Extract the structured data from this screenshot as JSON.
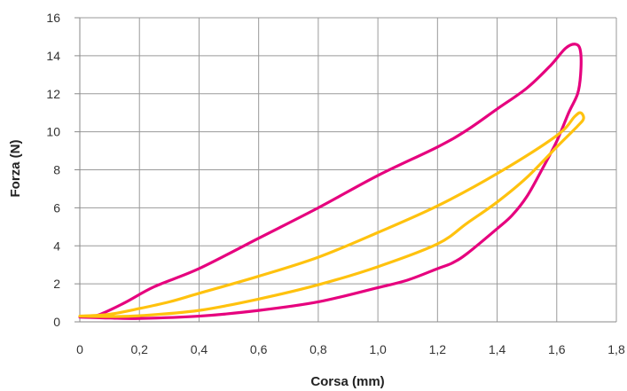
{
  "chart_data": {
    "type": "line",
    "title": "",
    "xlabel": "Corsa (mm)",
    "ylabel": "Forza (N)",
    "xlim": [
      0,
      1.8
    ],
    "ylim": [
      0,
      16
    ],
    "x_ticks": [
      0,
      0.2,
      0.4,
      0.6,
      0.8,
      1.0,
      1.2,
      1.4,
      1.6,
      1.8
    ],
    "x_tick_labels": [
      "0",
      "0,2",
      "0,4",
      "0,6",
      "0,8",
      "1,0",
      "1,2",
      "1,4",
      "1,6",
      "1,8"
    ],
    "y_ticks": [
      0,
      2,
      4,
      6,
      8,
      10,
      12,
      14,
      16
    ],
    "y_tick_labels": [
      "0",
      "2",
      "4",
      "6",
      "8",
      "10",
      "12",
      "14",
      "16"
    ],
    "grid": true,
    "legend": "none",
    "series": [
      {
        "color": "#e6007e",
        "points": [
          [
            0.0,
            0.25
          ],
          [
            0.06,
            0.35
          ],
          [
            0.15,
            1.0
          ],
          [
            0.25,
            1.85
          ],
          [
            0.4,
            2.8
          ],
          [
            0.6,
            4.4
          ],
          [
            0.8,
            6.0
          ],
          [
            1.0,
            7.7
          ],
          [
            1.2,
            9.2
          ],
          [
            1.3,
            10.1
          ],
          [
            1.4,
            11.2
          ],
          [
            1.5,
            12.3
          ],
          [
            1.58,
            13.5
          ],
          [
            1.63,
            14.4
          ],
          [
            1.665,
            14.6
          ],
          [
            1.68,
            14.2
          ],
          [
            1.68,
            13.0
          ],
          [
            1.67,
            12.0
          ],
          [
            1.64,
            11.0
          ],
          [
            1.6,
            9.5
          ],
          [
            1.55,
            8.0
          ],
          [
            1.5,
            6.6
          ],
          [
            1.45,
            5.6
          ],
          [
            1.4,
            4.9
          ],
          [
            1.3,
            3.6
          ],
          [
            1.25,
            3.1
          ],
          [
            1.2,
            2.8
          ],
          [
            1.1,
            2.2
          ],
          [
            1.0,
            1.8
          ],
          [
            0.8,
            1.05
          ],
          [
            0.6,
            0.6
          ],
          [
            0.4,
            0.3
          ],
          [
            0.2,
            0.18
          ],
          [
            0.1,
            0.2
          ],
          [
            0.0,
            0.25
          ]
        ]
      },
      {
        "color": "#ffc20e",
        "points": [
          [
            0.0,
            0.3
          ],
          [
            0.1,
            0.4
          ],
          [
            0.2,
            0.7
          ],
          [
            0.3,
            1.05
          ],
          [
            0.4,
            1.5
          ],
          [
            0.6,
            2.4
          ],
          [
            0.8,
            3.4
          ],
          [
            1.0,
            4.7
          ],
          [
            1.2,
            6.1
          ],
          [
            1.4,
            7.8
          ],
          [
            1.6,
            9.8
          ],
          [
            1.66,
            10.8
          ],
          [
            1.68,
            11.0
          ],
          [
            1.69,
            10.7
          ],
          [
            1.67,
            10.3
          ],
          [
            1.6,
            9.2
          ],
          [
            1.5,
            7.6
          ],
          [
            1.4,
            6.3
          ],
          [
            1.3,
            5.2
          ],
          [
            1.2,
            4.1
          ],
          [
            1.0,
            2.9
          ],
          [
            0.8,
            1.95
          ],
          [
            0.6,
            1.2
          ],
          [
            0.4,
            0.6
          ],
          [
            0.2,
            0.32
          ],
          [
            0.1,
            0.28
          ],
          [
            0.0,
            0.3
          ]
        ]
      }
    ]
  }
}
